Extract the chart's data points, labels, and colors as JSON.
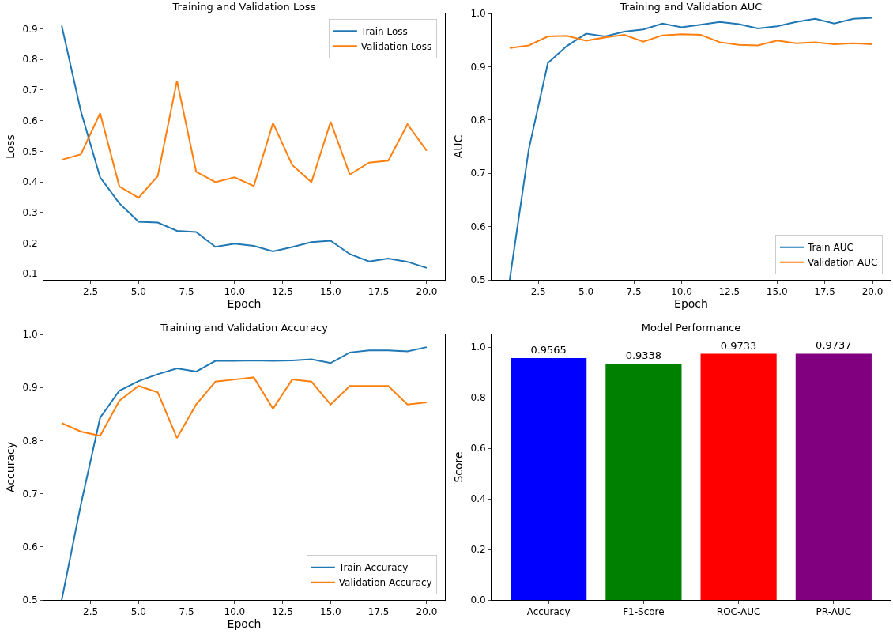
{
  "chart_data": [
    {
      "type": "line",
      "title": "Training and Validation Loss",
      "xlabel": "Epoch",
      "ylabel": "Loss",
      "x": [
        1,
        2,
        3,
        4,
        5,
        6,
        7,
        8,
        9,
        10,
        11,
        12,
        13,
        14,
        15,
        16,
        17,
        18,
        19,
        20
      ],
      "series": [
        {
          "name": "Train Loss",
          "color": "#1f77b4",
          "values": [
            0.91,
            0.63,
            0.415,
            0.33,
            0.27,
            0.267,
            0.24,
            0.236,
            0.188,
            0.198,
            0.191,
            0.173,
            0.187,
            0.203,
            0.208,
            0.164,
            0.14,
            0.15,
            0.139,
            0.119
          ]
        },
        {
          "name": "Validation Loss",
          "color": "#ff7f0e",
          "values": [
            0.472,
            0.49,
            0.624,
            0.385,
            0.348,
            0.419,
            0.73,
            0.433,
            0.399,
            0.415,
            0.386,
            0.592,
            0.455,
            0.399,
            0.596,
            0.424,
            0.463,
            0.469,
            0.588,
            0.502
          ]
        }
      ],
      "xlim": [
        0.05,
        20.95
      ],
      "xticks": [
        {
          "value": 2.5,
          "label": "2.5"
        },
        {
          "value": 5,
          "label": "5.0"
        },
        {
          "value": 7.5,
          "label": "7.5"
        },
        {
          "value": 10,
          "label": "10.0"
        },
        {
          "value": 12.5,
          "label": "12.5"
        },
        {
          "value": 15,
          "label": "15.0"
        },
        {
          "value": 17.5,
          "label": "17.5"
        },
        {
          "value": 20,
          "label": "20.0"
        }
      ],
      "ylim": [
        0.08,
        0.95
      ],
      "yticks": [
        0.1,
        0.2,
        0.3,
        0.4,
        0.5,
        0.6,
        0.7,
        0.8,
        0.9
      ],
      "grid": false,
      "legend": "top right",
      "marker": "none",
      "line_style": "solid"
    },
    {
      "type": "line",
      "title": "Training and Validation AUC",
      "xlabel": "Epoch",
      "ylabel": "AUC",
      "x": [
        1,
        2,
        3,
        4,
        5,
        6,
        7,
        8,
        9,
        10,
        11,
        12,
        13,
        14,
        15,
        16,
        17,
        18,
        19,
        20
      ],
      "series": [
        {
          "name": "Train AUC",
          "color": "#1f77b4",
          "values": [
            0.5,
            0.745,
            0.907,
            0.939,
            0.962,
            0.957,
            0.966,
            0.97,
            0.981,
            0.974,
            0.979,
            0.984,
            0.98,
            0.972,
            0.976,
            0.984,
            0.99,
            0.981,
            0.99,
            0.992
          ]
        },
        {
          "name": "Validation AUC",
          "color": "#ff7f0e",
          "values": [
            0.935,
            0.94,
            0.957,
            0.958,
            0.949,
            0.955,
            0.96,
            0.947,
            0.959,
            0.961,
            0.96,
            0.946,
            0.941,
            0.94,
            0.949,
            0.944,
            0.946,
            0.942,
            0.944,
            0.942
          ]
        }
      ],
      "xlim": [
        0.05,
        20.95
      ],
      "xticks": [
        {
          "value": 2.5,
          "label": "2.5"
        },
        {
          "value": 5,
          "label": "5.0"
        },
        {
          "value": 7.5,
          "label": "7.5"
        },
        {
          "value": 10,
          "label": "10.0"
        },
        {
          "value": 12.5,
          "label": "12.5"
        },
        {
          "value": 15,
          "label": "15.0"
        },
        {
          "value": 17.5,
          "label": "17.5"
        },
        {
          "value": 20,
          "label": "20.0"
        }
      ],
      "ylim": [
        0.5,
        1.0
      ],
      "yticks": [
        0.5,
        0.6,
        0.7,
        0.8,
        0.9,
        {
          "value": 1.0,
          "label": "1.0"
        }
      ],
      "grid": false,
      "legend": "bottom right",
      "marker": "none",
      "line_style": "solid"
    },
    {
      "type": "line",
      "title": "Training and Validation Accuracy",
      "xlabel": "Epoch",
      "ylabel": "Accuracy",
      "x": [
        1,
        2,
        3,
        4,
        5,
        6,
        7,
        8,
        9,
        10,
        11,
        12,
        13,
        14,
        15,
        16,
        17,
        18,
        19,
        20
      ],
      "series": [
        {
          "name": "Train Accuracy",
          "color": "#1f77b4",
          "values": [
            0.5,
            0.68,
            0.843,
            0.894,
            0.912,
            0.925,
            0.936,
            0.93,
            0.95,
            0.95,
            0.951,
            0.95,
            0.951,
            0.953,
            0.946,
            0.966,
            0.97,
            0.97,
            0.968,
            0.976
          ]
        },
        {
          "name": "Validation Accuracy",
          "color": "#ff7f0e",
          "values": [
            0.833,
            0.817,
            0.809,
            0.875,
            0.903,
            0.891,
            0.805,
            0.868,
            0.911,
            0.915,
            0.919,
            0.86,
            0.915,
            0.911,
            0.868,
            0.903,
            0.903,
            0.903,
            0.868,
            0.872
          ]
        }
      ],
      "xlim": [
        0.05,
        20.95
      ],
      "xticks": [
        {
          "value": 2.5,
          "label": "2.5"
        },
        {
          "value": 5,
          "label": "5.0"
        },
        {
          "value": 7.5,
          "label": "7.5"
        },
        {
          "value": 10,
          "label": "10.0"
        },
        {
          "value": 12.5,
          "label": "12.5"
        },
        {
          "value": 15,
          "label": "15.0"
        },
        {
          "value": 17.5,
          "label": "17.5"
        },
        {
          "value": 20,
          "label": "20.0"
        }
      ],
      "ylim": [
        0.5,
        1.0
      ],
      "yticks": [
        0.5,
        0.6,
        0.7,
        0.8,
        0.9,
        {
          "value": 1.0,
          "label": "1.0"
        }
      ],
      "grid": false,
      "legend": "bottom right",
      "marker": "none",
      "line_style": "solid"
    },
    {
      "type": "bar",
      "title": "Model Performance",
      "ylabel": "Score",
      "categories": [
        "Accuracy",
        "F1-Score",
        "ROC-AUC",
        "PR-AUC"
      ],
      "values": [
        0.9565,
        0.9338,
        0.9733,
        0.9737
      ],
      "colors": [
        "#0000ff",
        "#008000",
        "#ff0000",
        "#800080"
      ],
      "ylim": [
        0,
        1.05
      ],
      "yticks": [
        {
          "value": 0,
          "label": "0.0"
        },
        {
          "value": 0.2,
          "label": "0.2"
        },
        {
          "value": 0.4,
          "label": "0.4"
        },
        {
          "value": 0.6,
          "label": "0.6"
        },
        {
          "value": 0.8,
          "label": "0.8"
        },
        {
          "value": 1.0,
          "label": "1.0"
        }
      ],
      "data_labels": true,
      "grid": false,
      "legend": false
    }
  ]
}
